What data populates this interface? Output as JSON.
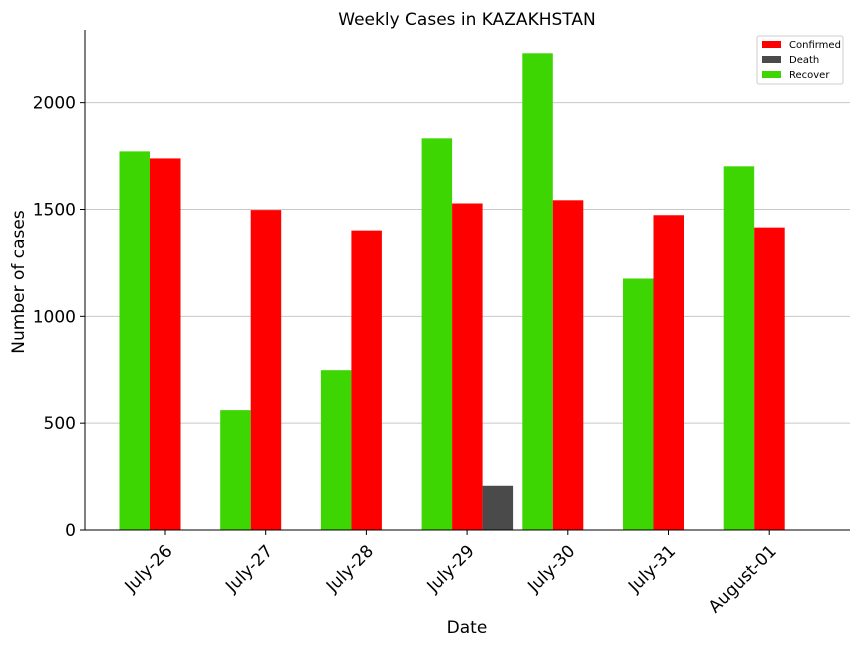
{
  "chart_data": {
    "type": "bar",
    "title": "Weekly Cases in KAZAKHSTAN",
    "xlabel": "Date",
    "ylabel": "Number of cases",
    "categories": [
      "July-26",
      "July-27",
      "July-28",
      "July-29",
      "July-30",
      "July-31",
      "August-01"
    ],
    "series": [
      {
        "name": "Recover",
        "color": "#3dd603",
        "values": [
          1772,
          561,
          748,
          1833,
          2231,
          1177,
          1702
        ]
      },
      {
        "name": "Confirmed",
        "color": "#ff0000",
        "values": [
          1739,
          1497,
          1401,
          1528,
          1543,
          1473,
          1415
        ]
      },
      {
        "name": "Death",
        "color": "#4a4a4a",
        "values": [
          0,
          0,
          0,
          207,
          0,
          0,
          0
        ]
      }
    ],
    "legend": {
      "placement": "top-right",
      "entries": [
        {
          "label": "Confirmed",
          "color": "#ff0000"
        },
        {
          "label": "Death",
          "color": "#4a4a4a"
        },
        {
          "label": "Recover",
          "color": "#3dd603"
        }
      ]
    },
    "yticks": [
      0,
      500,
      1000,
      1500,
      2000
    ],
    "ylim": [
      0,
      2340
    ],
    "grid": "horizontal"
  }
}
